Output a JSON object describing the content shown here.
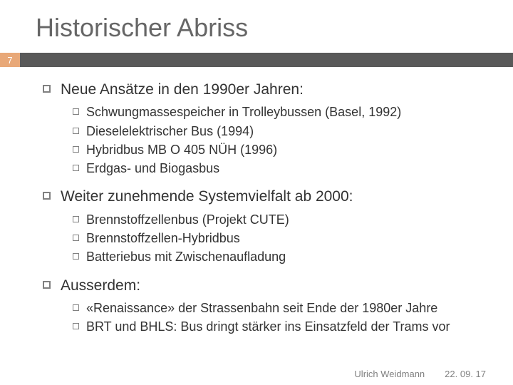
{
  "title": "Historischer Abriss",
  "pageNumber": "7",
  "colors": {
    "accentBar": "#595959",
    "pageBox": "#e8a878",
    "titleColor": "#666666",
    "bulletBorder": "#808080",
    "footerColor": "#808080"
  },
  "sections": [
    {
      "heading": "Neue Ansätze in den 1990er Jahren:",
      "items": [
        "Schwungmassespeicher in Trolleybussen (Basel, 1992)",
        "Dieselelektrischer Bus (1994)",
        "Hybridbus MB O 405 NÜH (1996)",
        "Erdgas- und Biogasbus"
      ]
    },
    {
      "heading": "Weiter zunehmende Systemvielfalt ab 2000:",
      "items": [
        "Brennstoffzellenbus (Projekt CUTE)",
        "Brennstoffzellen-Hybridbus",
        "Batteriebus mit Zwischenaufladung"
      ]
    },
    {
      "heading": "Ausserdem:",
      "items": [
        "«Renaissance» der Strassenbahn seit Ende der 1980er Jahre",
        "BRT und BHLS: Bus dringt stärker ins Einsatzfeld der Trams vor"
      ]
    }
  ],
  "footer": {
    "author": "Ulrich Weidmann",
    "date": "22. 09. 17"
  }
}
